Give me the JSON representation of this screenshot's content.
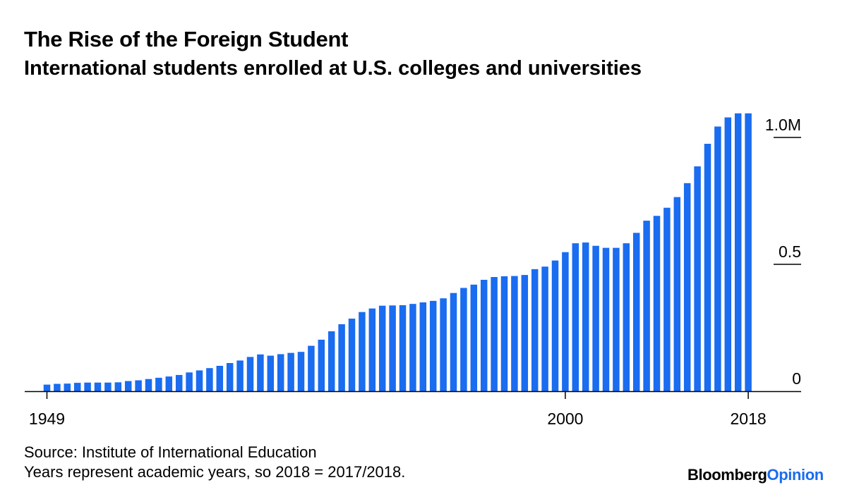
{
  "colors": {
    "bar": "#1a6cf0",
    "axis": "#000000",
    "brand_accent": "#1a6cf0"
  },
  "chart_data": {
    "type": "bar",
    "title": "The Rise of the Foreign Student",
    "subtitle": "International students enrolled at U.S. colleges and universities",
    "xlabel": "",
    "ylabel": "",
    "ylim": [
      0,
      1.0
    ],
    "grid": false,
    "y_ticks": [
      {
        "value": 1.0,
        "label": "1.0M"
      },
      {
        "value": 0.5,
        "label": "0.5"
      },
      {
        "value": 0,
        "label": "0"
      }
    ],
    "x_tick_labels": [
      "1949",
      "2000",
      "2018"
    ],
    "years": [
      1949,
      1950,
      1951,
      1952,
      1953,
      1954,
      1955,
      1956,
      1957,
      1958,
      1959,
      1960,
      1961,
      1962,
      1963,
      1964,
      1965,
      1966,
      1967,
      1968,
      1969,
      1970,
      1971,
      1972,
      1973,
      1974,
      1975,
      1976,
      1977,
      1978,
      1979,
      1980,
      1981,
      1982,
      1983,
      1984,
      1985,
      1986,
      1987,
      1988,
      1989,
      1990,
      1991,
      1992,
      1993,
      1994,
      1995,
      1996,
      1997,
      1998,
      1999,
      2000,
      2001,
      2002,
      2003,
      2004,
      2005,
      2006,
      2007,
      2008,
      2009,
      2010,
      2011,
      2012,
      2013,
      2014,
      2015,
      2016,
      2017,
      2018
    ],
    "values": [
      0.026,
      0.029,
      0.03,
      0.033,
      0.034,
      0.034,
      0.034,
      0.035,
      0.04,
      0.043,
      0.048,
      0.053,
      0.058,
      0.064,
      0.074,
      0.082,
      0.091,
      0.1,
      0.111,
      0.121,
      0.135,
      0.145,
      0.14,
      0.146,
      0.151,
      0.155,
      0.179,
      0.203,
      0.236,
      0.264,
      0.286,
      0.312,
      0.326,
      0.337,
      0.338,
      0.339,
      0.344,
      0.35,
      0.356,
      0.366,
      0.387,
      0.407,
      0.42,
      0.439,
      0.45,
      0.453,
      0.454,
      0.458,
      0.481,
      0.491,
      0.515,
      0.548,
      0.583,
      0.586,
      0.573,
      0.565,
      0.565,
      0.583,
      0.624,
      0.672,
      0.691,
      0.723,
      0.765,
      0.82,
      0.886,
      0.975,
      1.043,
      1.079,
      1.095,
      1.095
    ]
  },
  "footer": {
    "source": "Source: Institute of International Education",
    "note": "Years represent academic years, so 2018 = 2017/2018."
  },
  "brand": {
    "part1": "Bloomberg",
    "part2": "Opinion"
  }
}
